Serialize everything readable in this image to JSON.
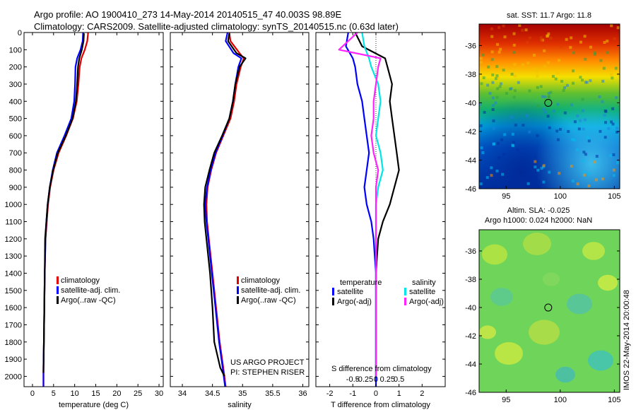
{
  "header": {
    "title1": "Argo profile: AO 1900410_273 14-May-2014 20140515_47 40.003S 98.89E",
    "title2": "Climatology: CARS2009. Satellite-adjusted climatology: synTS_20140515.nc (0.63d later)"
  },
  "stamp": "IMOS 22-May-2014 20:00:48",
  "project": {
    "line1": "US ARGO PROJECT",
    "line2": "PI: STEPHEN RISER"
  },
  "colors": {
    "clim": "#e00000",
    "sat": "#0000ff",
    "argo": "#000000",
    "sal_sat": "#00e5e5",
    "sal_argo": "#ff22ff"
  },
  "chart_data": [
    {
      "type": "line",
      "id": "temperature",
      "xlabel": "temperature (deg C)",
      "xlim": [
        -2,
        31
      ],
      "xticks": [
        0,
        5,
        10,
        15,
        20,
        25,
        30
      ],
      "xticklabels": [
        "0",
        "5",
        "10",
        "15",
        "20",
        "25",
        "30"
      ],
      "ylim": [
        2060,
        0
      ],
      "yticks": [
        0,
        100,
        200,
        300,
        400,
        500,
        600,
        700,
        800,
        900,
        1000,
        1100,
        1200,
        1300,
        1400,
        1500,
        1600,
        1700,
        1800,
        1900,
        2000
      ],
      "legend": [
        "climatology",
        "satellite-adj. clim.",
        "Argo(..raw -QC)"
      ],
      "series": [
        {
          "name": "climatology",
          "color": "#e00000",
          "x": [
            13.2,
            13.0,
            12.4,
            11.6,
            11.2,
            10.9,
            10.5,
            9.6,
            8.0,
            6.2,
            5.0,
            4.2,
            3.7,
            3.4,
            3.1,
            2.9,
            2.8,
            2.7,
            2.6,
            2.6
          ],
          "y": [
            0,
            50,
            100,
            150,
            200,
            300,
            400,
            500,
            600,
            700,
            800,
            900,
            1000,
            1100,
            1200,
            1400,
            1600,
            1800,
            1950,
            2060
          ]
        },
        {
          "name": "satellite-adj. clim.",
          "color": "#0000ff",
          "x": [
            12.0,
            11.9,
            11.4,
            10.6,
            10.2,
            10.1,
            9.9,
            9.2,
            7.6,
            5.8,
            4.8,
            4.1,
            3.6,
            3.3,
            3.1,
            2.9,
            2.8,
            2.7,
            2.6,
            2.6
          ],
          "y": [
            0,
            50,
            100,
            150,
            200,
            300,
            400,
            500,
            600,
            700,
            800,
            900,
            1000,
            1100,
            1200,
            1400,
            1600,
            1800,
            1950,
            2060
          ]
        },
        {
          "name": "Argo(..raw -QC)",
          "color": "#000000",
          "x": [
            12.2,
            12.1,
            11.7,
            11.1,
            10.8,
            10.6,
            10.3,
            9.5,
            7.9,
            6.0,
            4.9,
            4.1,
            3.6,
            3.3,
            3.0,
            2.9,
            2.8,
            2.7,
            2.6
          ],
          "y": [
            5,
            50,
            100,
            150,
            200,
            300,
            400,
            500,
            600,
            700,
            800,
            900,
            1000,
            1100,
            1200,
            1400,
            1600,
            1800,
            1980
          ]
        }
      ]
    },
    {
      "type": "line",
      "id": "salinity",
      "xlabel": "salinity",
      "xlim": [
        33.8,
        36.1
      ],
      "xticks": [
        34,
        34.5,
        35,
        35.5,
        36
      ],
      "xticklabels": [
        "34",
        "34.5",
        "35",
        "35.5",
        "36"
      ],
      "ylim": [
        2060,
        0
      ],
      "legend": [
        "climatology",
        "satellite-adj. clim.",
        "Argo(..raw -QC)"
      ],
      "series": [
        {
          "name": "climatology",
          "color": "#e00000",
          "x": [
            34.78,
            34.8,
            34.95,
            35.02,
            34.97,
            34.9,
            34.86,
            34.8,
            34.68,
            34.56,
            34.48,
            34.42,
            34.4,
            34.41,
            34.44,
            34.5,
            34.56,
            34.62,
            34.68,
            34.72
          ],
          "y": [
            0,
            50,
            120,
            150,
            200,
            300,
            400,
            500,
            600,
            700,
            800,
            900,
            1000,
            1100,
            1200,
            1400,
            1600,
            1800,
            1950,
            2060
          ]
        },
        {
          "name": "satellite-adj. clim.",
          "color": "#0000ff",
          "x": [
            34.75,
            34.72,
            34.85,
            34.98,
            34.93,
            34.88,
            34.84,
            34.78,
            34.67,
            34.55,
            34.47,
            34.41,
            34.38,
            34.4,
            34.43,
            34.49,
            34.55,
            34.61,
            34.67,
            34.71
          ],
          "y": [
            0,
            50,
            120,
            150,
            200,
            300,
            400,
            500,
            600,
            700,
            800,
            900,
            1000,
            1100,
            1200,
            1400,
            1600,
            1800,
            1950,
            2060
          ]
        },
        {
          "name": "Argo(..raw -QC)",
          "color": "#000000",
          "x": [
            34.78,
            34.76,
            34.9,
            35.05,
            34.95,
            34.88,
            34.84,
            34.78,
            34.66,
            34.53,
            34.45,
            34.38,
            34.36,
            34.37,
            34.4,
            34.46,
            34.5,
            34.53,
            34.63,
            34.7
          ],
          "y": [
            5,
            50,
            120,
            150,
            200,
            300,
            400,
            500,
            600,
            700,
            800,
            900,
            1000,
            1100,
            1200,
            1400,
            1600,
            1800,
            1950,
            2000
          ]
        }
      ]
    },
    {
      "type": "line",
      "id": "difference",
      "xlabel": "T difference from climatology",
      "xlabel_top": "S difference from climatology",
      "xlim": [
        -2.6,
        3.0
      ],
      "xticks": [
        -2,
        -1,
        0,
        1,
        2
      ],
      "xticklabels": [
        "-2",
        "-1",
        "0",
        "1",
        "2"
      ],
      "sticks": [
        -1,
        -0.5,
        0,
        0.5,
        1
      ],
      "sticklabels": [
        "-0.5",
        "-0.25",
        "0",
        "0.25",
        "0.5"
      ],
      "ylim": [
        2060,
        0
      ],
      "legend_headers": [
        "temperature",
        "salinity"
      ],
      "legend": [
        "satellite",
        "Argo(-adj)",
        "satellite",
        "Argo(-adj)"
      ],
      "series": [
        {
          "name": "satellite",
          "group": "temperature",
          "color": "#0000ff",
          "x": [
            -1.2,
            -1.3,
            -1.0,
            -0.9,
            -0.8,
            -0.6,
            -0.5,
            -0.4,
            -0.3,
            -0.4,
            -0.5,
            -0.4,
            -0.2,
            -0.1,
            -0.05,
            0,
            0,
            0,
            0
          ],
          "y": [
            0,
            80,
            150,
            200,
            300,
            400,
            500,
            600,
            700,
            800,
            900,
            1000,
            1100,
            1200,
            1300,
            1400,
            1600,
            1800,
            2060
          ]
        },
        {
          "name": "Argo(-adj)",
          "group": "temperature",
          "color": "#000000",
          "x": [
            -0.9,
            -0.6,
            0.4,
            0.5,
            0.7,
            0.6,
            0.7,
            0.8,
            0.9,
            1.0,
            0.8,
            0.6,
            0.3,
            0.1,
            0,
            0,
            0,
            0
          ],
          "y": [
            0,
            80,
            150,
            200,
            300,
            400,
            500,
            600,
            700,
            800,
            900,
            1000,
            1100,
            1200,
            1400,
            1600,
            1800,
            2000
          ]
        },
        {
          "name": "satellite",
          "group": "salinity",
          "color": "#00e5e5",
          "x": [
            -0.6,
            -0.5,
            -0.3,
            -0.2,
            0.1,
            0.2,
            0.1,
            0.0,
            0.2,
            0.3,
            0.1,
            0,
            0,
            0,
            0,
            0,
            0
          ],
          "y": [
            0,
            80,
            150,
            200,
            300,
            400,
            500,
            600,
            700,
            800,
            900,
            1000,
            1200,
            1400,
            1600,
            1800,
            2000
          ]
        },
        {
          "name": "Argo(-adj)",
          "group": "salinity",
          "color": "#ff22ff",
          "x": [
            -0.8,
            -1.6,
            0.2,
            0.1,
            0.0,
            -0.1,
            -0.1,
            -0.2,
            -0.1,
            0.1,
            0,
            0,
            0,
            0,
            0,
            0,
            0
          ],
          "y": [
            0,
            100,
            150,
            200,
            300,
            400,
            500,
            600,
            700,
            800,
            900,
            1000,
            1200,
            1400,
            1600,
            1800,
            2000
          ]
        }
      ]
    },
    {
      "type": "heatmap",
      "id": "sst-map",
      "title": "sat. SST: 11.7  Argo: 11.8",
      "xlim": [
        92.5,
        105.5
      ],
      "ylim": [
        -46,
        -34.5
      ],
      "xticks": [
        95,
        100,
        105
      ],
      "xticklabels": [
        "95",
        "100",
        "105"
      ],
      "yticks": [
        -36,
        -38,
        -40,
        -42,
        -44,
        -46
      ],
      "yticklabels": [
        "-36",
        "-38",
        "-40",
        "-42",
        "-44",
        "-46"
      ],
      "marker": {
        "lon": 98.89,
        "lat": -40.003
      }
    },
    {
      "type": "heatmap",
      "id": "sla-map",
      "title": "Altim. SLA: -0.025",
      "subtitle": "Argo h1000: 0.024 h2000: NaN",
      "xlim": [
        92.5,
        105.5
      ],
      "ylim": [
        -46,
        -34.5
      ],
      "xticks": [
        95,
        100,
        105
      ],
      "xticklabels": [
        "95",
        "100",
        "105"
      ],
      "yticks": [
        -36,
        -38,
        -40,
        -42,
        -44,
        -46
      ],
      "yticklabels": [
        "-36",
        "-38",
        "-40",
        "-42",
        "-44",
        "-46"
      ],
      "marker": {
        "lon": 98.89,
        "lat": -40.003
      }
    }
  ]
}
